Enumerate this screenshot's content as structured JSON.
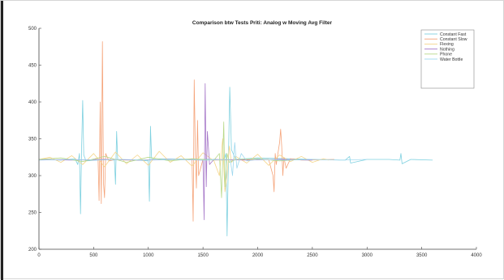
{
  "chart_data": {
    "type": "line",
    "title": "Comparison btw Tests Priti: Analog w Moving Avg Filter",
    "xlabel": "",
    "ylabel": "",
    "xlim": [
      0,
      4000
    ],
    "ylim": [
      200,
      500
    ],
    "xticks": [
      "0",
      "500",
      "1000",
      "1500",
      "2000",
      "2500",
      "3000",
      "3500",
      "4000"
    ],
    "yticks": [
      "200",
      "250",
      "300",
      "350",
      "400",
      "450",
      "500"
    ],
    "grid": false,
    "legend_position": "top-right",
    "series": [
      {
        "name": "Constant Fast",
        "color": "#7fd1e0",
        "x": [
          0,
          200,
          330,
          355,
          370,
          380,
          390,
          400,
          410,
          430,
          600,
          690,
          700,
          710,
          720,
          900,
          1000,
          1010,
          1020,
          1030,
          1600,
          1680,
          1700,
          1710,
          1720,
          1730,
          1745,
          1760,
          1800,
          2000,
          2500,
          2800,
          2840,
          2850,
          3000,
          3200,
          3300,
          3310,
          3320,
          3400,
          3600
        ],
        "y": [
          322,
          321,
          323,
          315,
          330,
          248,
          340,
          402,
          328,
          320,
          322,
          321,
          288,
          360,
          322,
          321,
          320,
          265,
          367,
          323,
          322,
          321,
          325,
          330,
          218,
          300,
          420,
          335,
          322,
          324,
          322,
          321,
          326,
          317,
          322,
          322,
          321,
          330,
          316,
          322,
          321
        ]
      },
      {
        "name": "Constant Slow",
        "color": "#f5a47a",
        "x": [
          0,
          500,
          540,
          550,
          560,
          570,
          580,
          590,
          600,
          610,
          640,
          700,
          800,
          1400,
          1410,
          1420,
          1430,
          1440,
          1450,
          1460,
          1500,
          1600,
          2100,
          2140,
          2150,
          2160,
          2170,
          2200,
          2210,
          2220,
          2230,
          2240,
          2260,
          2300,
          2400,
          2700
        ],
        "y": [
          322,
          321,
          324,
          266,
          400,
          262,
          482,
          290,
          270,
          330,
          320,
          322,
          321,
          322,
          238,
          430,
          330,
          283,
          375,
          300,
          322,
          321,
          322,
          300,
          278,
          330,
          315,
          345,
          363,
          340,
          300,
          325,
          310,
          323,
          321,
          322
        ]
      },
      {
        "name": "Flexing",
        "color": "#f5d58a",
        "x": [
          0,
          100,
          200,
          300,
          400,
          500,
          600,
          700,
          800,
          900,
          1000,
          1100,
          1200,
          1300,
          1400,
          1500,
          1600,
          1650,
          1680,
          1700,
          1720,
          1740,
          1760,
          1800,
          1900,
          2000,
          2100,
          2200,
          2300,
          2400,
          2500,
          2600,
          2650
        ],
        "y": [
          322,
          325,
          318,
          327,
          315,
          330,
          312,
          332,
          316,
          328,
          314,
          333,
          318,
          327,
          313,
          331,
          320,
          300,
          350,
          278,
          300,
          340,
          318,
          326,
          317,
          329,
          314,
          328,
          319,
          326,
          318,
          323,
          321
        ]
      },
      {
        "name": "Nothing",
        "color": "#a779c9",
        "x": [
          0,
          300,
          600,
          900,
          1200,
          1500,
          1510,
          1520,
          1530,
          1540,
          1560,
          1600,
          1900,
          2200,
          2500
        ],
        "y": [
          322,
          321,
          322,
          321,
          322,
          321,
          240,
          425,
          285,
          360,
          315,
          322,
          321,
          322,
          321
        ]
      },
      {
        "name": "Phone",
        "color": "#b8d98a",
        "x": [
          0,
          200,
          400,
          600,
          800,
          1000,
          1200,
          1400,
          1600,
          1650,
          1670,
          1690,
          1700,
          1720,
          1740,
          1800,
          2000,
          2200,
          2400
        ],
        "y": [
          322,
          324,
          319,
          326,
          318,
          325,
          320,
          323,
          321,
          330,
          270,
          373,
          285,
          330,
          318,
          322,
          323,
          320,
          322
        ]
      },
      {
        "name": "Water Bottle",
        "color": "#9fd8ee",
        "x": [
          0,
          250,
          500,
          750,
          1000,
          1250,
          1500,
          1750,
          1770,
          1790,
          1810,
          1850,
          1900,
          2000,
          2250,
          2500,
          2750,
          3000
        ],
        "y": [
          321,
          322,
          321,
          322,
          321,
          322,
          321,
          322,
          300,
          345,
          310,
          330,
          320,
          322,
          321,
          322,
          321,
          322
        ]
      }
    ]
  }
}
